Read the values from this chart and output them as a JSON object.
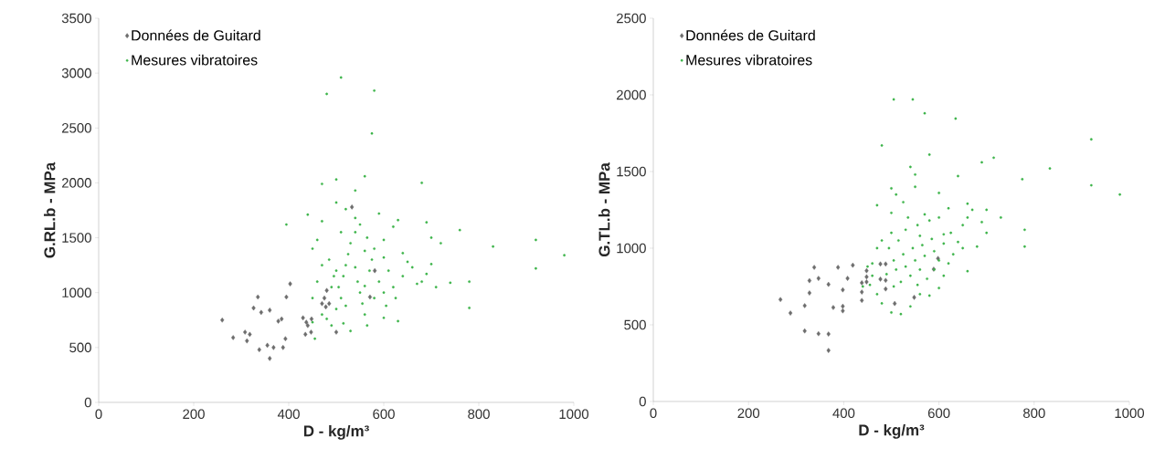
{
  "chart_data": [
    {
      "type": "scatter",
      "xlabel": "D - kg/m³",
      "ylabel": "G.RL.b - MPa",
      "xlim": [
        0,
        1000
      ],
      "ylim": [
        0,
        3500
      ],
      "xticks": [
        0,
        200,
        400,
        600,
        800,
        1000
      ],
      "yticks": [
        0,
        500,
        1000,
        1500,
        2000,
        2500,
        3000,
        3500
      ],
      "legend": "top left",
      "grid": false,
      "series": [
        {
          "name": "Données de Guitard",
          "color": "#6d6d6d",
          "marker": "diamond",
          "x": [
            260,
            283,
            308,
            312,
            318,
            326,
            335,
            338,
            342,
            355,
            360,
            360,
            368,
            378,
            385,
            388,
            393,
            395,
            403,
            430,
            435,
            437,
            440,
            447,
            448,
            470,
            475,
            478,
            480,
            485,
            500,
            533,
            581,
            571
          ],
          "values": [
            750,
            590,
            640,
            560,
            620,
            860,
            960,
            480,
            820,
            520,
            400,
            840,
            500,
            740,
            760,
            500,
            580,
            960,
            1080,
            770,
            620,
            730,
            700,
            640,
            760,
            900,
            950,
            870,
            1020,
            900,
            640,
            1780,
            1200,
            960
          ]
        },
        {
          "name": "Mesures vibratoires",
          "color": "#3cb44a",
          "marker": "circle",
          "x": [
            510,
            480,
            580,
            575,
            560,
            500,
            680,
            470,
            540,
            395,
            440,
            630,
            690,
            760,
            700,
            720,
            830,
            920,
            920,
            980,
            780,
            780,
            740,
            680,
            690,
            650,
            640,
            600,
            620,
            590,
            550,
            520,
            500,
            460,
            450,
            470,
            460,
            450,
            470,
            455,
            490,
            500,
            510,
            505,
            515,
            520,
            525,
            530,
            540,
            545,
            550,
            555,
            560,
            565,
            570,
            575,
            580,
            590,
            600,
            605,
            610,
            620,
            625,
            630,
            640,
            660,
            670,
            600,
            530,
            480,
            495,
            485,
            510,
            540,
            565,
            600,
            450,
            520,
            540,
            560,
            580,
            500,
            490,
            515,
            560,
            470,
            710,
            700
          ],
          "values": [
            2960,
            2810,
            2840,
            2450,
            2060,
            2030,
            2000,
            1990,
            1930,
            1620,
            1710,
            1660,
            1640,
            1570,
            1500,
            1450,
            1420,
            1480,
            1220,
            1340,
            860,
            1100,
            1090,
            1100,
            1170,
            1280,
            1360,
            1480,
            1600,
            1720,
            1620,
            1760,
            1820,
            1480,
            1400,
            1250,
            1100,
            950,
            800,
            580,
            700,
            850,
            950,
            1050,
            1150,
            1250,
            1350,
            1450,
            1550,
            1100,
            1000,
            900,
            800,
            700,
            1200,
            1300,
            1400,
            1100,
            1000,
            880,
            1200,
            1050,
            950,
            740,
            1150,
            1230,
            1080,
            770,
            650,
            760,
            1150,
            1300,
            1550,
            1680,
            1500,
            1320,
            730,
            880,
            1230,
            1060,
            950,
            1200,
            1050,
            720,
            1380,
            1650,
            1050,
            1260
          ]
        }
      ]
    },
    {
      "type": "scatter",
      "xlabel": "D - kg/m³",
      "ylabel": "G.TL.b - MPa",
      "xlim": [
        0,
        1000
      ],
      "ylim": [
        0,
        2500
      ],
      "xticks": [
        0,
        200,
        400,
        600,
        800,
        1000
      ],
      "yticks": [
        0,
        500,
        1000,
        1500,
        2000,
        2500
      ],
      "legend": "top left",
      "grid": false,
      "series": [
        {
          "name": "Données de Guitard",
          "color": "#6d6d6d",
          "marker": "diamond",
          "x": [
            267,
            288,
            318,
            318,
            328,
            328,
            338,
            347,
            347,
            368,
            368,
            368,
            378,
            388,
            398,
            398,
            398,
            408,
            419,
            438,
            438,
            438,
            448,
            448,
            448,
            477,
            477,
            488,
            488,
            488,
            507,
            548,
            589,
            598
          ],
          "values": [
            665,
            577,
            625,
            460,
            788,
            708,
            875,
            803,
            442,
            764,
            440,
            333,
            613,
            875,
            728,
            621,
            591,
            803,
            889,
            774,
            714,
            659,
            853,
            813,
            780,
            897,
            798,
            897,
            790,
            734,
            639,
            679,
            863,
            933
          ]
        },
        {
          "name": "Mesures vibratoires",
          "color": "#3cb44a",
          "marker": "circle",
          "x": [
            505,
            545,
            570,
            635,
            920,
            480,
            580,
            690,
            715,
            833,
            920,
            980,
            775,
            780,
            780,
            730,
            700,
            620,
            660,
            540,
            550,
            640,
            600,
            500,
            510,
            470,
            550,
            570,
            650,
            670,
            690,
            700,
            640,
            610,
            560,
            530,
            500,
            480,
            460,
            450,
            455,
            470,
            480,
            500,
            520,
            540,
            560,
            580,
            600,
            610,
            620,
            590,
            570,
            550,
            530,
            510,
            490,
            520,
            540,
            560,
            575,
            505,
            525,
            545,
            565,
            585,
            600,
            630,
            650,
            660,
            680,
            495,
            515,
            535,
            525,
            555,
            580,
            470,
            460,
            600,
            625,
            440,
            505,
            555,
            590,
            610,
            500,
            660
          ],
          "values": [
            1970,
            1970,
            1880,
            1845,
            1710,
            1670,
            1610,
            1560,
            1590,
            1520,
            1410,
            1350,
            1450,
            1010,
            1120,
            1200,
            1250,
            1260,
            1290,
            1530,
            1480,
            1470,
            1360,
            1390,
            1350,
            1280,
            1400,
            1220,
            1150,
            1250,
            1170,
            1100,
            1040,
            1030,
            1080,
            1120,
            1100,
            1050,
            900,
            880,
            760,
            700,
            640,
            580,
            570,
            620,
            700,
            690,
            740,
            820,
            900,
            980,
            950,
            920,
            880,
            860,
            830,
            780,
            820,
            860,
            800,
            920,
            960,
            1000,
            1020,
            1060,
            920,
            960,
            1000,
            850,
            1010,
            1000,
            1050,
            1200,
            1300,
            1150,
            1180,
            1000,
            820,
            1200,
            1100,
            750,
            750,
            760,
            860,
            1090,
            1230,
            1200
          ]
        }
      ]
    }
  ]
}
